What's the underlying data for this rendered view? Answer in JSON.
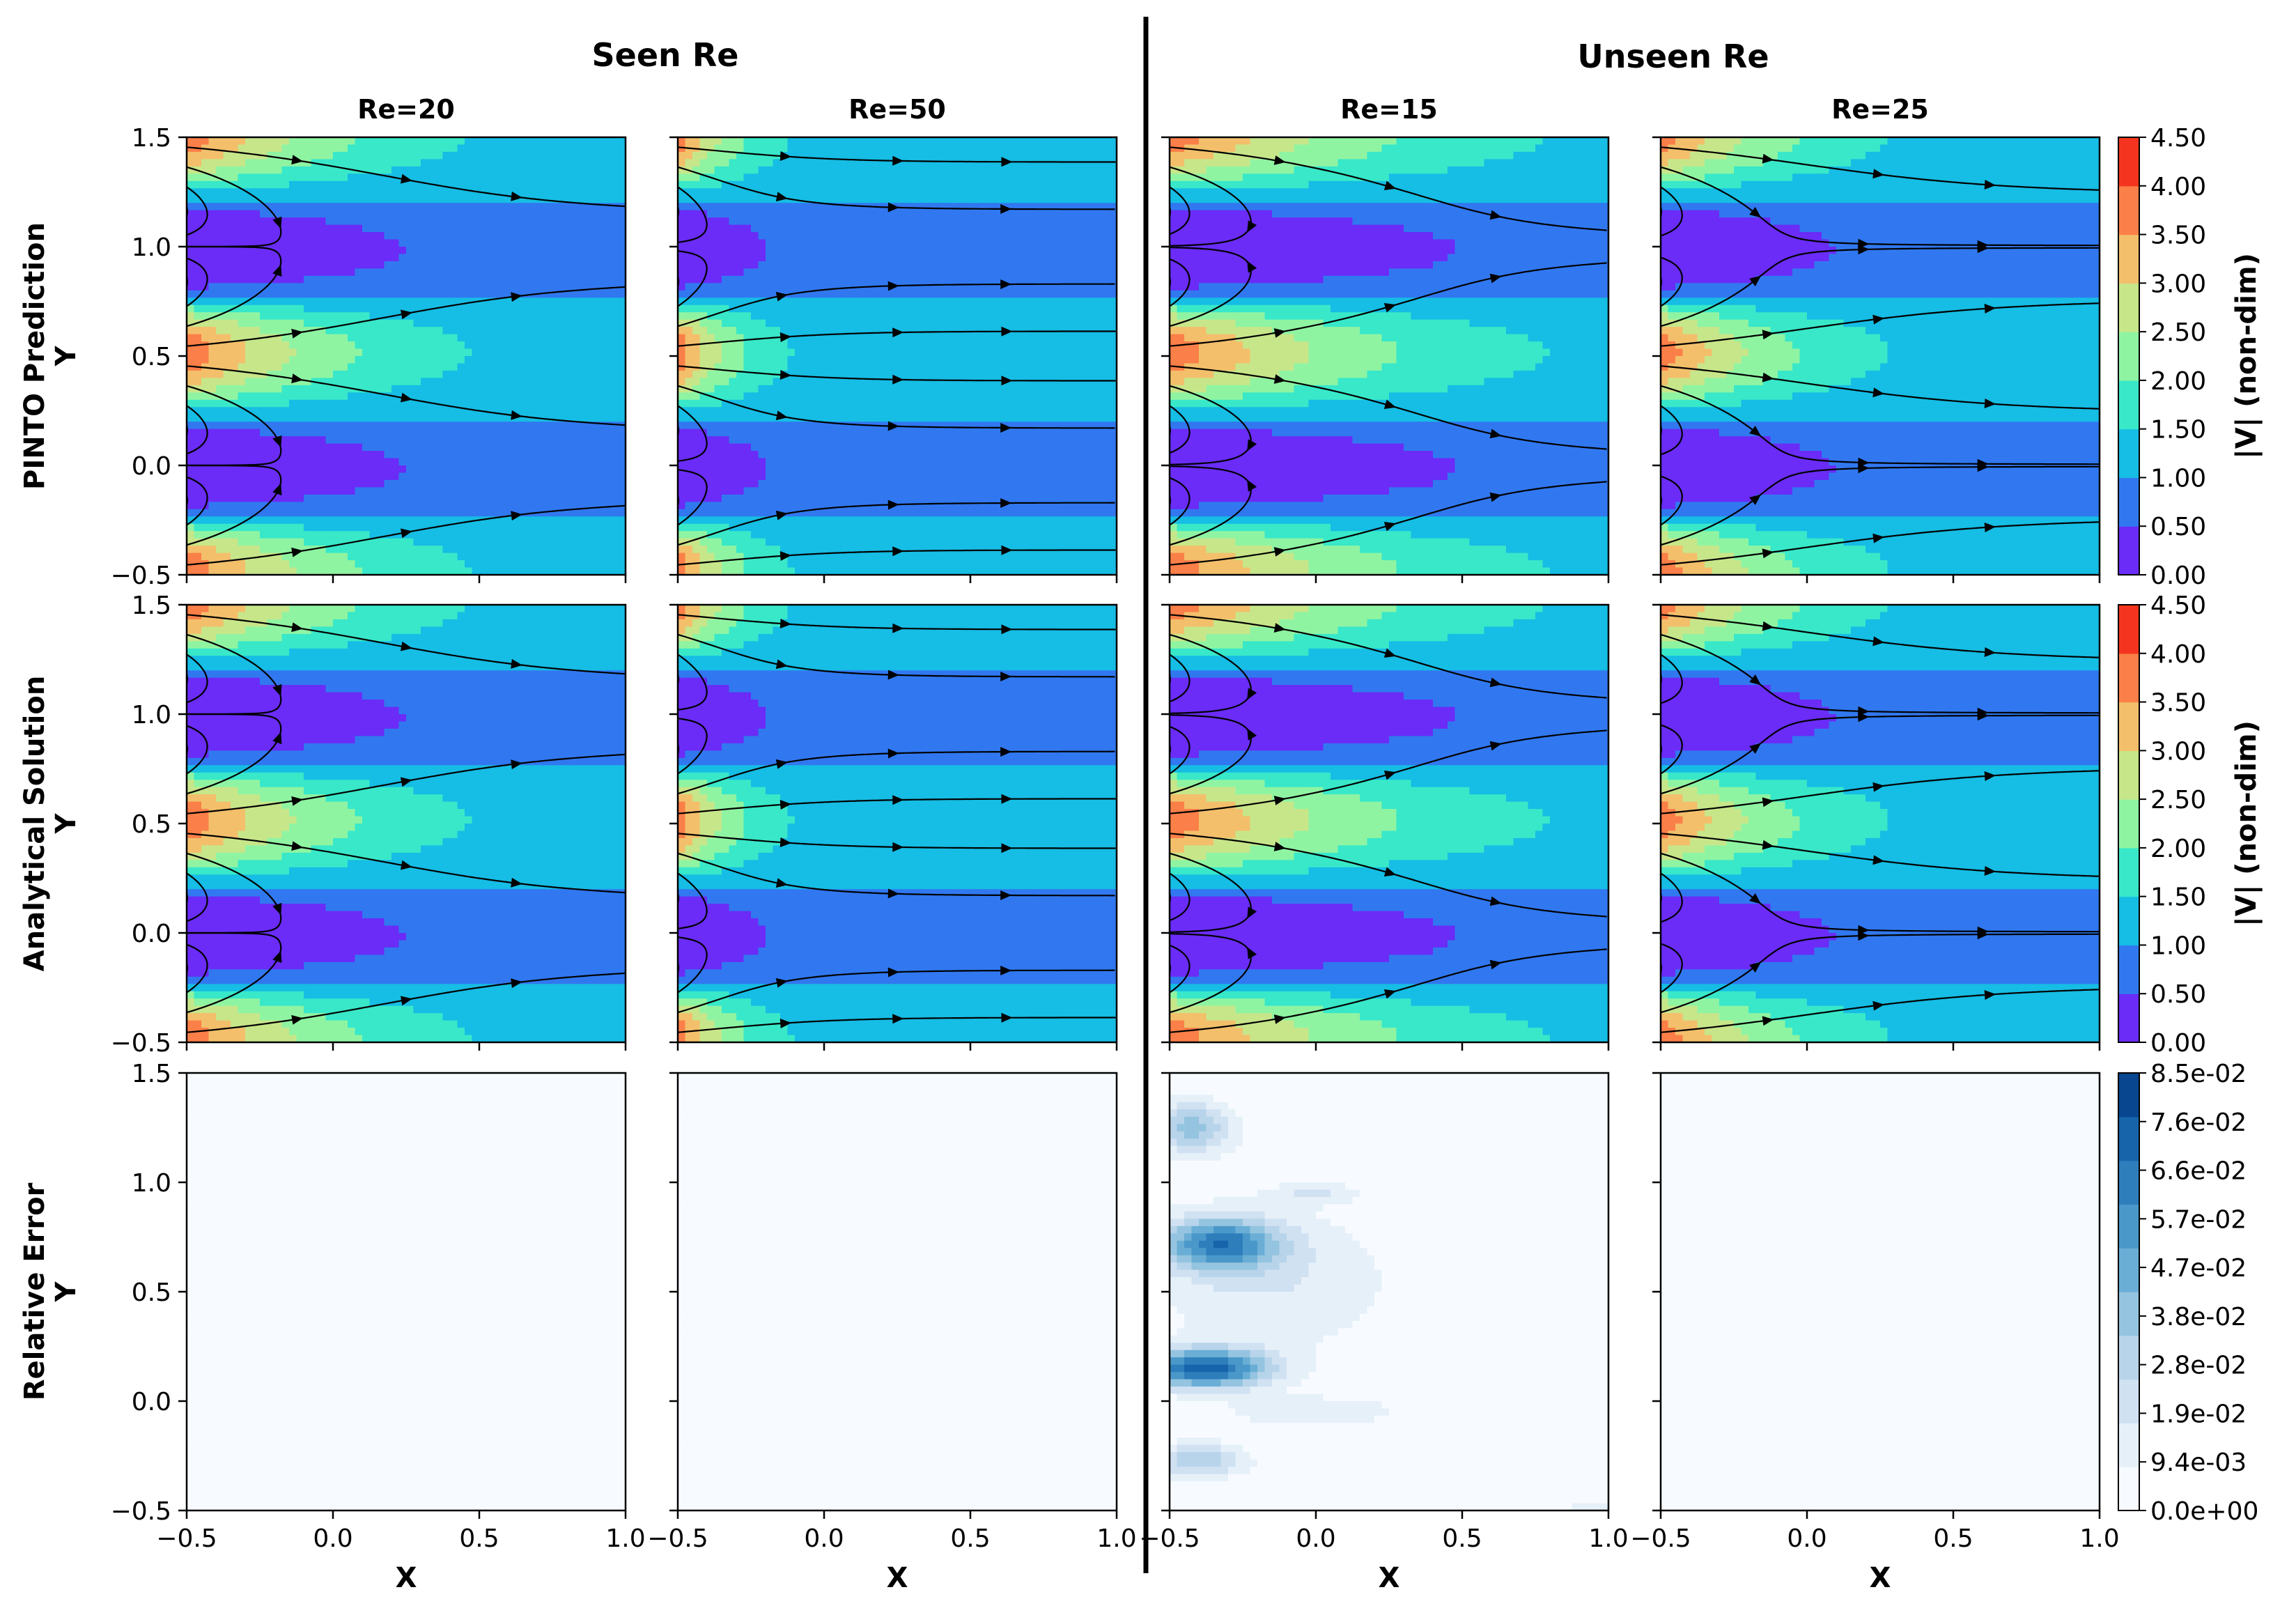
{
  "chart_data": {
    "type": "heatmap",
    "group_titles": [
      "Seen Re",
      "Unseen Re"
    ],
    "columns": [
      {
        "label": "Re=20",
        "group": "Seen Re",
        "re": 20,
        "error_max_frac": 0.0
      },
      {
        "label": "Re=50",
        "group": "Seen Re",
        "re": 50,
        "error_max_frac": 0.0
      },
      {
        "label": "Re=15",
        "group": "Unseen Re",
        "re": 15,
        "error_max_frac": 1.0
      },
      {
        "label": "Re=25",
        "group": "Unseen Re",
        "re": 25,
        "error_max_frac": 0.0
      }
    ],
    "rows": [
      {
        "label": "PINTO Prediction",
        "kind": "velocity"
      },
      {
        "label": "Analytical Solution",
        "kind": "velocity"
      },
      {
        "label": "Relative Error",
        "kind": "error"
      }
    ],
    "xlabel": "X",
    "ylabel": "Y",
    "xlim": [
      -0.5,
      1.0
    ],
    "ylim": [
      -0.5,
      1.5
    ],
    "xticks": [
      "−0.5",
      "0.0",
      "0.5",
      "1.0"
    ],
    "yticks": [
      "−0.5",
      "0.0",
      "0.5",
      "1.0",
      "1.5"
    ],
    "velocity_colorbar": {
      "label": "|V| (non-dim)",
      "min": 0.0,
      "max": 4.5,
      "ticks": [
        "0.00",
        "0.50",
        "1.00",
        "1.50",
        "2.00",
        "2.50",
        "3.00",
        "3.50",
        "4.00",
        "4.50"
      ],
      "colors": [
        "#6a2cf6",
        "#3178f0",
        "#16bde4",
        "#38e8c9",
        "#8ff4a2",
        "#c7e68a",
        "#f3bf6b",
        "#fb7f48",
        "#f5341f"
      ]
    },
    "error_colorbar": {
      "label": "",
      "min": 0.0,
      "max": 0.085,
      "ticks": [
        "0.0e+00",
        "9.4e-03",
        "1.9e-02",
        "2.8e-02",
        "3.8e-02",
        "4.7e-02",
        "5.7e-02",
        "6.6e-02",
        "7.6e-02",
        "8.5e-02"
      ],
      "colors": [
        "#f7fbff",
        "#e6f0f9",
        "#d0e1f2",
        "#b7d4ea",
        "#94c4df",
        "#6aaed6",
        "#4a98c9",
        "#2e7ebc",
        "#1764ab",
        "#08468f"
      ]
    }
  }
}
